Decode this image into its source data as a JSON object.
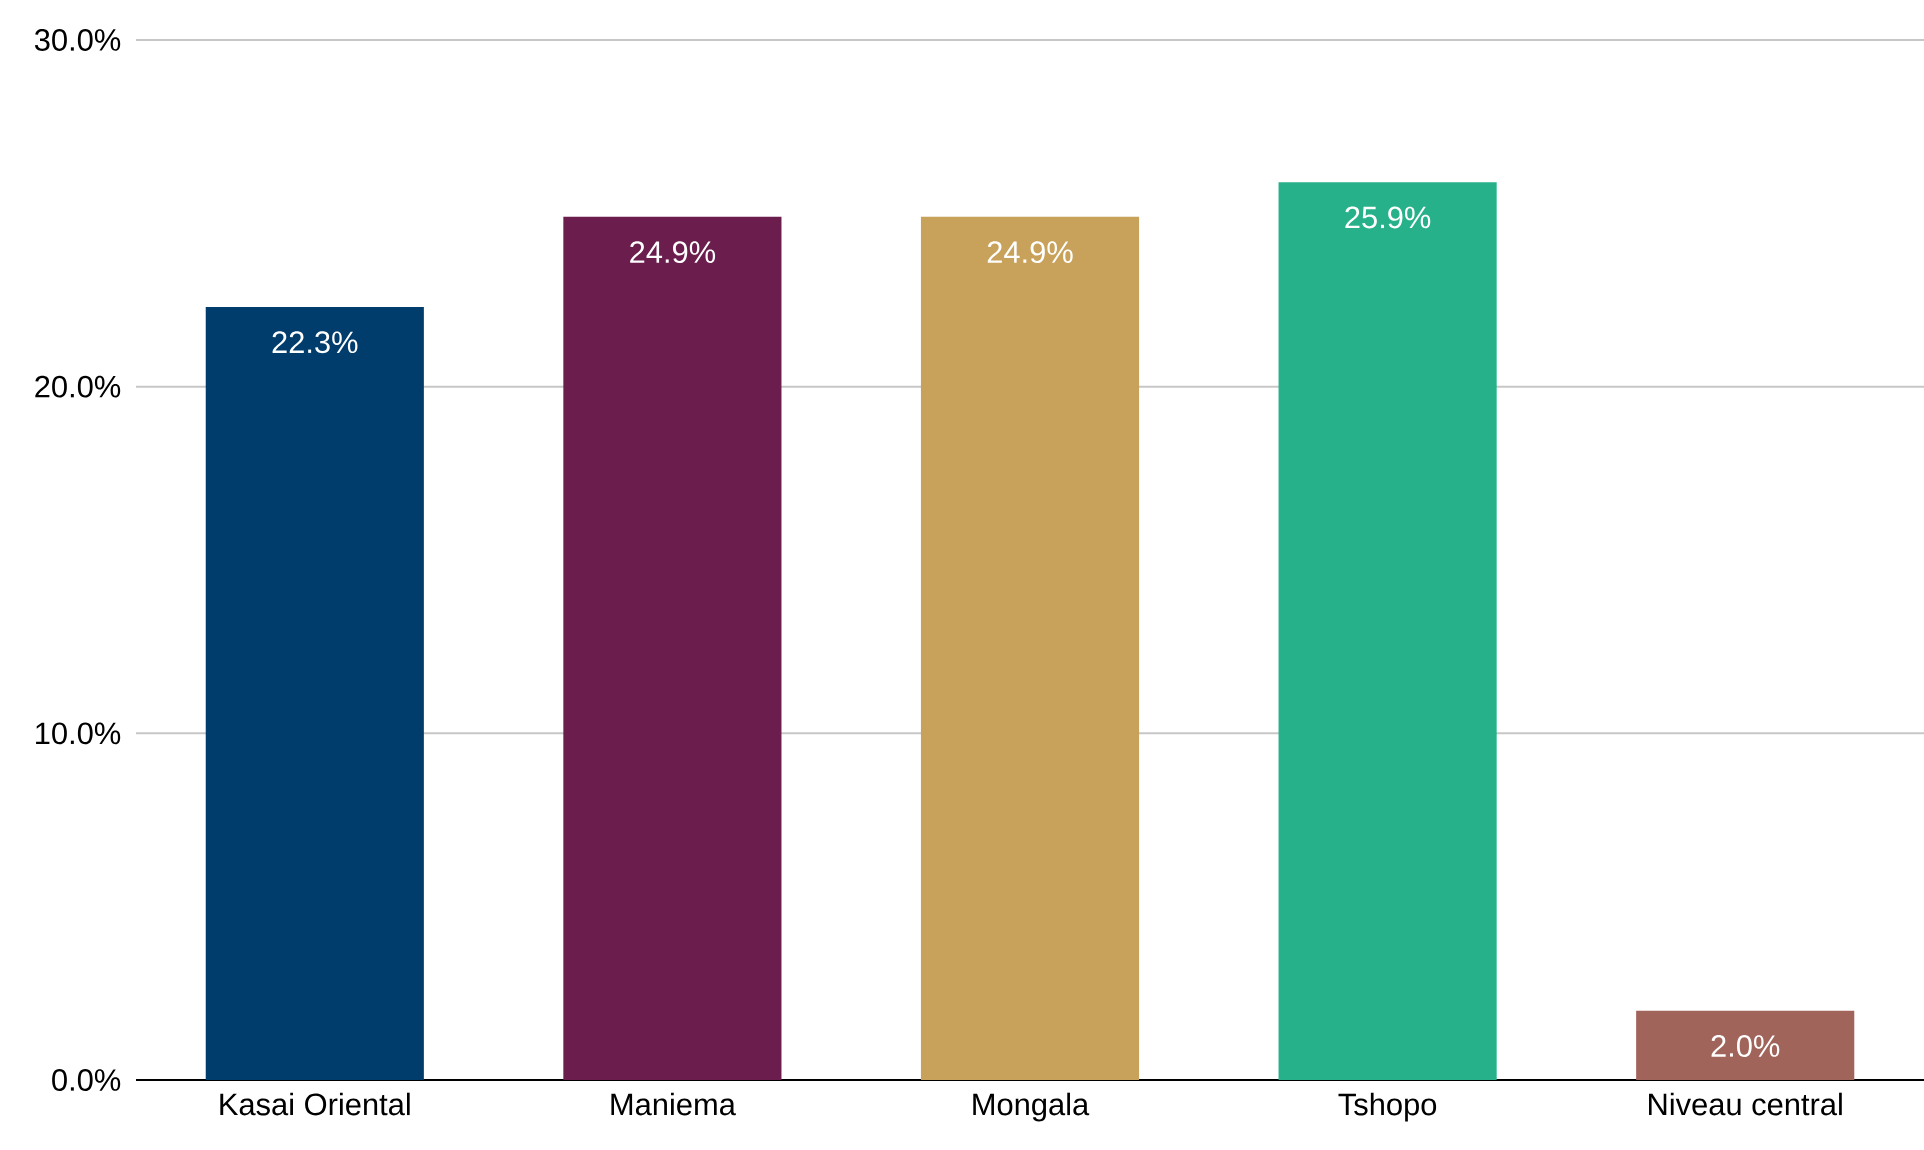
{
  "chart_data": {
    "type": "bar",
    "categories": [
      "Kasai Oriental",
      "Maniema",
      "Mongala",
      "Tshopo",
      "Niveau central"
    ],
    "values": [
      22.3,
      24.9,
      24.9,
      25.9,
      2.0
    ],
    "colors": [
      "#003c6c",
      "#6b1e4e",
      "#c8a15a",
      "#27b18a",
      "#a0645a"
    ],
    "value_labels": [
      "22.3%",
      "24.9%",
      "24.9%",
      "25.9%",
      "2.0%"
    ],
    "ylim": [
      0,
      30
    ],
    "yticks": [
      {
        "value": 0,
        "label": "0.0%"
      },
      {
        "value": 10,
        "label": "10.0%"
      },
      {
        "value": 20,
        "label": "20.0%"
      },
      {
        "value": 30,
        "label": "30.0%"
      }
    ],
    "grid": "y"
  }
}
